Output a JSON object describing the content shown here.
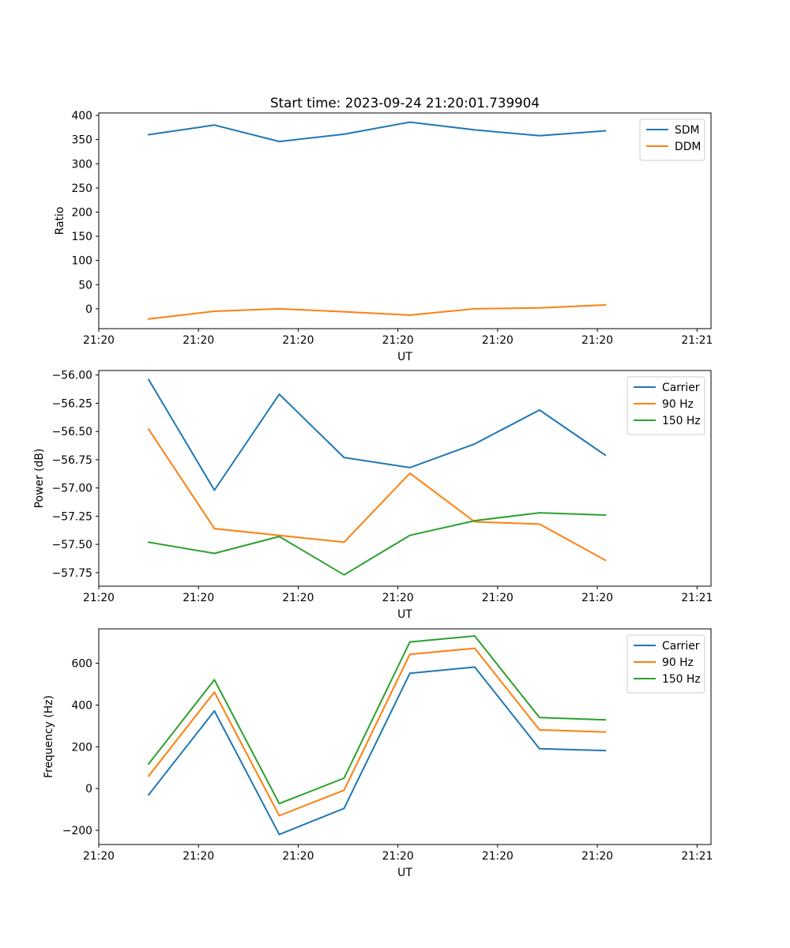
{
  "chart_data": [
    {
      "type": "line",
      "title": "Start time: 2023-09-24 21:20:01.739904",
      "xlabel": "UT",
      "ylabel": "Ratio",
      "xlim": [
        0,
        6.14
      ],
      "ylim": [
        -41,
        405
      ],
      "x": [
        0.5,
        1.16,
        1.81,
        2.46,
        3.12,
        3.77,
        4.42,
        5.08
      ],
      "xticks": [
        0,
        1,
        2,
        3,
        4,
        5,
        6
      ],
      "xtick_labels": [
        "21:20",
        "21:20",
        "21:20",
        "21:20",
        "21:20",
        "21:20",
        "21:21"
      ],
      "yticks": [
        0,
        50,
        100,
        150,
        200,
        250,
        300,
        350,
        400
      ],
      "ytick_labels": [
        "0",
        "50",
        "100",
        "150",
        "200",
        "250",
        "300",
        "350",
        "400"
      ],
      "legend_position": "top-right",
      "series": [
        {
          "name": "SDM",
          "color": "#1f77b4",
          "values": [
            360,
            380,
            346,
            361,
            386,
            370,
            358,
            368
          ]
        },
        {
          "name": "DDM",
          "color": "#ff7f0e",
          "values": [
            -21,
            -5,
            0,
            -6,
            -13,
            0,
            2,
            8
          ]
        }
      ]
    },
    {
      "type": "line",
      "title": "",
      "xlabel": "UT",
      "ylabel": "Power (dB)",
      "xlim": [
        0,
        6.14
      ],
      "ylim": [
        -57.87,
        -55.96
      ],
      "x": [
        0.5,
        1.16,
        1.81,
        2.46,
        3.12,
        3.77,
        4.42,
        5.08
      ],
      "xticks": [
        0,
        1,
        2,
        3,
        4,
        5,
        6
      ],
      "xtick_labels": [
        "21:20",
        "21:20",
        "21:20",
        "21:20",
        "21:20",
        "21:20",
        "21:21"
      ],
      "yticks": [
        -57.75,
        -57.5,
        -57.25,
        -57.0,
        -56.75,
        -56.5,
        -56.25,
        -56.0
      ],
      "ytick_labels": [
        "−57.75",
        "−57.50",
        "−57.25",
        "−57.00",
        "−56.75",
        "−56.50",
        "−56.25",
        "−56.00"
      ],
      "legend_position": "top-right",
      "series": [
        {
          "name": "Carrier",
          "color": "#1f77b4",
          "values": [
            -56.04,
            -57.02,
            -56.17,
            -56.73,
            -56.82,
            -56.61,
            -56.31,
            -56.71
          ]
        },
        {
          "name": "90 Hz",
          "color": "#ff7f0e",
          "values": [
            -56.48,
            -57.36,
            -57.42,
            -57.48,
            -56.87,
            -57.3,
            -57.32,
            -57.64
          ]
        },
        {
          "name": "150 Hz",
          "color": "#2ca02c",
          "values": [
            -57.48,
            -57.58,
            -57.43,
            -57.77,
            -57.42,
            -57.29,
            -57.22,
            -57.24
          ]
        }
      ]
    },
    {
      "type": "line",
      "title": "",
      "xlabel": "UT",
      "ylabel": "Frequency (Hz)",
      "xlim": [
        0,
        6.14
      ],
      "ylim": [
        -268,
        765
      ],
      "x": [
        0.5,
        1.16,
        1.81,
        2.46,
        3.12,
        3.77,
        4.42,
        5.08
      ],
      "xticks": [
        0,
        1,
        2,
        3,
        4,
        5,
        6
      ],
      "xtick_labels": [
        "21:20",
        "21:20",
        "21:20",
        "21:20",
        "21:20",
        "21:20",
        "21:21"
      ],
      "yticks": [
        -200,
        0,
        200,
        400,
        600
      ],
      "ytick_labels": [
        "−200",
        "0",
        "200",
        "400",
        "600"
      ],
      "legend_position": "top-right",
      "series": [
        {
          "name": "Carrier",
          "color": "#1f77b4",
          "values": [
            -30,
            372,
            -220,
            -95,
            552,
            582,
            191,
            182
          ]
        },
        {
          "name": "90 Hz",
          "color": "#ff7f0e",
          "values": [
            60,
            462,
            -130,
            -8,
            643,
            672,
            281,
            271
          ]
        },
        {
          "name": "150 Hz",
          "color": "#2ca02c",
          "values": [
            118,
            521,
            -72,
            50,
            702,
            731,
            340,
            329
          ]
        }
      ]
    }
  ]
}
